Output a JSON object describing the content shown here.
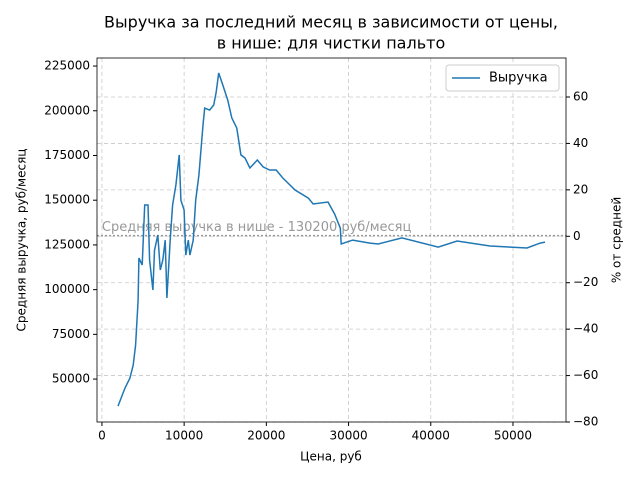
{
  "chart_data": {
    "type": "line",
    "title": [
      "Выручка за последний месяц в зависимости от цены,",
      "в нише: для чистки пальто"
    ],
    "xlabel": "Цена, руб",
    "ylabel": "Средняя выручка, руб/месяц",
    "y2label": "% от средней",
    "series": [
      {
        "name": "Выручка",
        "color": "#1f77b4",
        "x": [
          1950,
          2800,
          3400,
          3800,
          4100,
          4400,
          4500,
          4900,
          5200,
          5600,
          5800,
          6200,
          6400,
          6800,
          7100,
          7400,
          7700,
          7900,
          8300,
          8600,
          9000,
          9400,
          9600,
          10000,
          10200,
          10500,
          10700,
          11100,
          11400,
          11800,
          12300,
          12500,
          13100,
          13600,
          13900,
          14200,
          14700,
          15300,
          15800,
          16400,
          16900,
          17400,
          18000,
          18900,
          19600,
          20400,
          21200,
          22000,
          23500,
          25100,
          25700,
          27500,
          28300,
          29000,
          29100,
          30500,
          32600,
          33600,
          36500,
          40900,
          43200,
          47200,
          51700,
          53300,
          53900
        ],
        "values": [
          34900,
          45000,
          50500,
          57800,
          69000,
          94000,
          117700,
          113800,
          147300,
          147300,
          116500,
          99800,
          122000,
          130500,
          111000,
          116500,
          127700,
          95300,
          127700,
          147300,
          158500,
          175300,
          150000,
          144500,
          119300,
          127700,
          119300,
          127700,
          150000,
          164000,
          192000,
          201500,
          200400,
          203200,
          210500,
          221100,
          214400,
          206000,
          196000,
          190300,
          175300,
          173600,
          168000,
          172500,
          168600,
          166900,
          166900,
          162400,
          155700,
          151200,
          147900,
          149000,
          142300,
          134400,
          125500,
          127700,
          126000,
          125500,
          128900,
          123800,
          127200,
          124400,
          123300,
          126000,
          126600
        ]
      }
    ],
    "reference_line": {
      "value": 130200,
      "label": "Средняя выручка в нише - 130200 руб/месяц",
      "color": "#999999"
    },
    "xlim": [
      -600,
      56450
    ],
    "xticks": [
      0,
      10000,
      20000,
      30000,
      40000,
      50000
    ],
    "ylim": [
      26000,
      229500
    ],
    "yticks": [
      50000,
      75000,
      100000,
      125000,
      150000,
      175000,
      200000,
      225000
    ],
    "y2lim": [
      -80,
      76.8
    ],
    "y2ticks": [
      {
        "value": -80,
        "label": "−80"
      },
      {
        "value": -60,
        "label": "−60"
      },
      {
        "value": -40,
        "label": "−40"
      },
      {
        "value": -20,
        "label": "−20"
      },
      0,
      20,
      40,
      60
    ],
    "grid": true,
    "legend": "upper right"
  }
}
